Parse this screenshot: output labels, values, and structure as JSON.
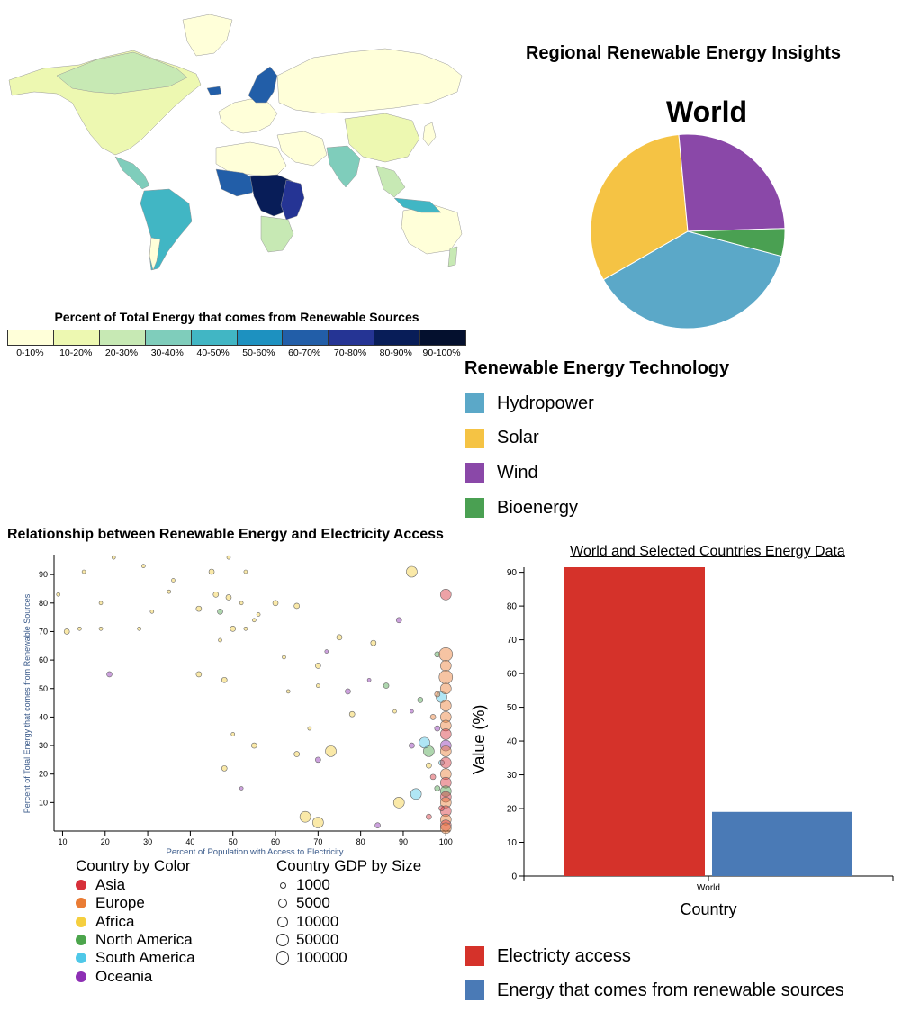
{
  "map": {
    "legend_title": "Percent of Total Energy that comes from Renewable Sources",
    "bins": [
      {
        "label": "0-10%",
        "color": "#ffffd9"
      },
      {
        "label": "10-20%",
        "color": "#edf8b1"
      },
      {
        "label": "20-30%",
        "color": "#c7e9b4"
      },
      {
        "label": "30-40%",
        "color": "#7fcdbb"
      },
      {
        "label": "40-50%",
        "color": "#41b6c4"
      },
      {
        "label": "50-60%",
        "color": "#1d91c0"
      },
      {
        "label": "60-70%",
        "color": "#225ea8"
      },
      {
        "label": "70-80%",
        "color": "#253494"
      },
      {
        "label": "80-90%",
        "color": "#081d58"
      },
      {
        "label": "90-100%",
        "color": "#04102e"
      }
    ]
  },
  "pie": {
    "title": "Regional Renewable Energy Insights",
    "region": "World",
    "legend_title": "Renewable Energy Technology",
    "items": [
      {
        "label": "Hydropower",
        "color": "#5ba8c8"
      },
      {
        "label": "Solar",
        "color": "#f5c344"
      },
      {
        "label": "Wind",
        "color": "#8a48a8"
      },
      {
        "label": "Bioenergy",
        "color": "#4aa052"
      }
    ]
  },
  "scatter": {
    "title": "Relationship between Renewable Energy and Electricity Access",
    "color_legend_title": "Country by Color",
    "size_legend_title": "Country GDP by Size",
    "regions": [
      {
        "label": "Asia",
        "color": "#d7303a"
      },
      {
        "label": "Europe",
        "color": "#ea7c34"
      },
      {
        "label": "Africa",
        "color": "#f5cf3f"
      },
      {
        "label": "North America",
        "color": "#4ca54c"
      },
      {
        "label": "South America",
        "color": "#4fc8e8"
      },
      {
        "label": "Oceania",
        "color": "#8d2fb4"
      }
    ],
    "sizes": [
      "1000",
      "5000",
      "10000",
      "50000",
      "100000"
    ]
  },
  "bar": {
    "title": "World and Selected Countries Energy Data",
    "legend": [
      {
        "label": "Electricty access",
        "color": "#d5322a"
      },
      {
        "label": "Energy that comes from renewable sources",
        "color": "#4a7ab6"
      }
    ]
  },
  "chart_data": [
    {
      "type": "pie",
      "title": "World",
      "categories": [
        "Hydropower",
        "Solar",
        "Wind",
        "Bioenergy"
      ],
      "values": [
        37.6,
        31.8,
        26.0,
        4.6
      ]
    },
    {
      "type": "scatter",
      "xlabel": "Percent of Population with Access to Electricity",
      "ylabel": "Percent of Total Energy that comes from Renewable Sources",
      "xlim": [
        8,
        101
      ],
      "ylim": [
        0,
        97
      ],
      "xticks": [
        10,
        20,
        30,
        40,
        50,
        60,
        70,
        80,
        90,
        100
      ],
      "yticks": [
        10,
        20,
        30,
        40,
        50,
        60,
        70,
        80,
        90
      ],
      "points": [
        {
          "x": 15,
          "y": 91,
          "r": "Africa",
          "g": 1
        },
        {
          "x": 22,
          "y": 96,
          "r": "Africa",
          "g": 1
        },
        {
          "x": 29,
          "y": 93,
          "r": "Africa",
          "g": 1
        },
        {
          "x": 36,
          "y": 88,
          "r": "Africa",
          "g": 1
        },
        {
          "x": 45,
          "y": 91,
          "r": "Africa",
          "g": 2
        },
        {
          "x": 49,
          "y": 96,
          "r": "Africa",
          "g": 1
        },
        {
          "x": 53,
          "y": 91,
          "r": "Africa",
          "g": 1
        },
        {
          "x": 9,
          "y": 83,
          "r": "Africa",
          "g": 1
        },
        {
          "x": 19,
          "y": 80,
          "r": "Africa",
          "g": 1
        },
        {
          "x": 31,
          "y": 77,
          "r": "Africa",
          "g": 1
        },
        {
          "x": 35,
          "y": 84,
          "r": "Africa",
          "g": 1
        },
        {
          "x": 42,
          "y": 78,
          "r": "Africa",
          "g": 2
        },
        {
          "x": 46,
          "y": 83,
          "r": "Africa",
          "g": 2
        },
        {
          "x": 49,
          "y": 82,
          "r": "Africa",
          "g": 2
        },
        {
          "x": 52,
          "y": 80,
          "r": "Africa",
          "g": 1
        },
        {
          "x": 56,
          "y": 76,
          "r": "Africa",
          "g": 1
        },
        {
          "x": 60,
          "y": 80,
          "r": "Africa",
          "g": 2
        },
        {
          "x": 65,
          "y": 79,
          "r": "Africa",
          "g": 2
        },
        {
          "x": 11,
          "y": 70,
          "r": "Africa",
          "g": 2
        },
        {
          "x": 14,
          "y": 71,
          "r": "Africa",
          "g": 1
        },
        {
          "x": 19,
          "y": 71,
          "r": "Africa",
          "g": 1
        },
        {
          "x": 28,
          "y": 71,
          "r": "Africa",
          "g": 1
        },
        {
          "x": 47,
          "y": 67,
          "r": "Africa",
          "g": 1
        },
        {
          "x": 50,
          "y": 71,
          "r": "Africa",
          "g": 2
        },
        {
          "x": 53,
          "y": 71,
          "r": "Africa",
          "g": 1
        },
        {
          "x": 55,
          "y": 74,
          "r": "Africa",
          "g": 1
        },
        {
          "x": 62,
          "y": 61,
          "r": "Africa",
          "g": 1
        },
        {
          "x": 70,
          "y": 58,
          "r": "Africa",
          "g": 2
        },
        {
          "x": 75,
          "y": 68,
          "r": "Africa",
          "g": 2
        },
        {
          "x": 83,
          "y": 66,
          "r": "Africa",
          "g": 2
        },
        {
          "x": 42,
          "y": 55,
          "r": "Africa",
          "g": 2
        },
        {
          "x": 48,
          "y": 53,
          "r": "Africa",
          "g": 2
        },
        {
          "x": 63,
          "y": 49,
          "r": "Africa",
          "g": 1
        },
        {
          "x": 70,
          "y": 51,
          "r": "Africa",
          "g": 1
        },
        {
          "x": 78,
          "y": 41,
          "r": "Africa",
          "g": 2
        },
        {
          "x": 88,
          "y": 42,
          "r": "Africa",
          "g": 1
        },
        {
          "x": 50,
          "y": 34,
          "r": "Africa",
          "g": 1
        },
        {
          "x": 55,
          "y": 30,
          "r": "Africa",
          "g": 2
        },
        {
          "x": 65,
          "y": 27,
          "r": "Africa",
          "g": 2
        },
        {
          "x": 68,
          "y": 36,
          "r": "Africa",
          "g": 1
        },
        {
          "x": 73,
          "y": 28,
          "r": "Africa",
          "g": 3
        },
        {
          "x": 48,
          "y": 22,
          "r": "Africa",
          "g": 2
        },
        {
          "x": 67,
          "y": 5,
          "r": "Africa",
          "g": 3
        },
        {
          "x": 70,
          "y": 3,
          "r": "Africa",
          "g": 3
        },
        {
          "x": 89,
          "y": 10,
          "r": "Africa",
          "g": 3
        },
        {
          "x": 92,
          "y": 91,
          "r": "Africa",
          "g": 3
        },
        {
          "x": 96,
          "y": 23,
          "r": "Africa",
          "g": 2
        },
        {
          "x": 47,
          "y": 77,
          "r": "North America",
          "g": 2
        },
        {
          "x": 86,
          "y": 51,
          "r": "North America",
          "g": 2
        },
        {
          "x": 94,
          "y": 46,
          "r": "North America",
          "g": 2
        },
        {
          "x": 98,
          "y": 62,
          "r": "North America",
          "g": 2
        },
        {
          "x": 96,
          "y": 28,
          "r": "North America",
          "g": 3
        },
        {
          "x": 98,
          "y": 15,
          "r": "North America",
          "g": 2
        },
        {
          "x": 21,
          "y": 55,
          "r": "Oceania",
          "g": 2
        },
        {
          "x": 72,
          "y": 63,
          "r": "Oceania",
          "g": 1
        },
        {
          "x": 77,
          "y": 49,
          "r": "Oceania",
          "g": 2
        },
        {
          "x": 82,
          "y": 53,
          "r": "Oceania",
          "g": 1
        },
        {
          "x": 89,
          "y": 74,
          "r": "Oceania",
          "g": 2
        },
        {
          "x": 70,
          "y": 25,
          "r": "Oceania",
          "g": 2
        },
        {
          "x": 52,
          "y": 15,
          "r": "Oceania",
          "g": 1
        },
        {
          "x": 84,
          "y": 2,
          "r": "Oceania",
          "g": 2
        },
        {
          "x": 92,
          "y": 30,
          "r": "Oceania",
          "g": 2
        },
        {
          "x": 92,
          "y": 42,
          "r": "Oceania",
          "g": 1
        },
        {
          "x": 98,
          "y": 36,
          "r": "Oceania",
          "g": 2
        },
        {
          "x": 95,
          "y": 31,
          "r": "South America",
          "g": 3
        },
        {
          "x": 93,
          "y": 13,
          "r": "South America",
          "g": 3
        },
        {
          "x": 99,
          "y": 47,
          "r": "South America",
          "g": 3
        },
        {
          "x": 99,
          "y": 24,
          "r": "South America",
          "g": 2
        },
        {
          "x": 100,
          "y": 83,
          "r": "Asia",
          "g": 3
        },
        {
          "x": 100,
          "y": 62,
          "r": "Europe",
          "g": 4
        },
        {
          "x": 100,
          "y": 58,
          "r": "Europe",
          "g": 3
        },
        {
          "x": 100,
          "y": 54,
          "r": "Europe",
          "g": 4
        },
        {
          "x": 100,
          "y": 50,
          "r": "Europe",
          "g": 3
        },
        {
          "x": 100,
          "y": 44,
          "r": "Europe",
          "g": 3
        },
        {
          "x": 100,
          "y": 40,
          "r": "Europe",
          "g": 3
        },
        {
          "x": 100,
          "y": 37,
          "r": "Europe",
          "g": 3
        },
        {
          "x": 100,
          "y": 34,
          "r": "Asia",
          "g": 3
        },
        {
          "x": 100,
          "y": 30,
          "r": "Oceania",
          "g": 3
        },
        {
          "x": 100,
          "y": 28,
          "r": "Europe",
          "g": 3
        },
        {
          "x": 100,
          "y": 24,
          "r": "Asia",
          "g": 3
        },
        {
          "x": 100,
          "y": 20,
          "r": "Europe",
          "g": 3
        },
        {
          "x": 100,
          "y": 17,
          "r": "Asia",
          "g": 3
        },
        {
          "x": 100,
          "y": 14,
          "r": "North America",
          "g": 3
        },
        {
          "x": 100,
          "y": 12,
          "r": "Asia",
          "g": 3
        },
        {
          "x": 100,
          "y": 10,
          "r": "Europe",
          "g": 3
        },
        {
          "x": 100,
          "y": 7,
          "r": "Asia",
          "g": 3
        },
        {
          "x": 100,
          "y": 4,
          "r": "Europe",
          "g": 3
        },
        {
          "x": 100,
          "y": 2,
          "r": "Asia",
          "g": 3
        },
        {
          "x": 100,
          "y": 1,
          "r": "Europe",
          "g": 3
        },
        {
          "x": 98,
          "y": 48,
          "r": "Europe",
          "g": 2
        },
        {
          "x": 97,
          "y": 40,
          "r": "Europe",
          "g": 2
        },
        {
          "x": 97,
          "y": 19,
          "r": "Asia",
          "g": 2
        },
        {
          "x": 99,
          "y": 8,
          "r": "Asia",
          "g": 2
        },
        {
          "x": 96,
          "y": 5,
          "r": "Asia",
          "g": 2
        }
      ]
    },
    {
      "type": "bar",
      "categories": [
        "World"
      ],
      "series": [
        {
          "name": "Electricty access",
          "values": [
            91.5
          ]
        },
        {
          "name": "Energy that comes from renewable sources",
          "values": [
            19
          ]
        }
      ],
      "xlabel": "Country",
      "ylabel": "Value (%)",
      "ylim": [
        0,
        91.5
      ],
      "yticks": [
        0,
        10,
        20,
        30,
        40,
        50,
        60,
        70,
        80,
        90
      ]
    }
  ]
}
